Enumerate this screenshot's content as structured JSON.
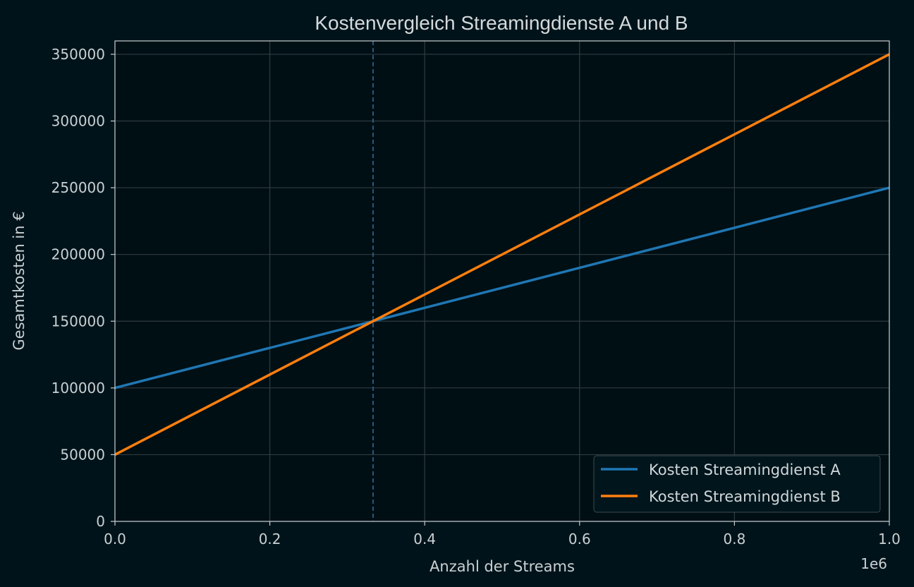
{
  "chart_data": {
    "type": "line",
    "title": "Kostenvergleich Streamingdienste A und B",
    "xlabel": "Anzahl der Streams",
    "ylabel": "Gesamtkosten in €",
    "x_offset_label": "1e6",
    "xlim": [
      0,
      1000000
    ],
    "ylim": [
      0,
      360000
    ],
    "x_ticks": [
      0,
      200000,
      400000,
      600000,
      800000,
      1000000
    ],
    "x_tick_labels": [
      "0.0",
      "0.2",
      "0.4",
      "0.6",
      "0.8",
      "1.0"
    ],
    "y_ticks": [
      0,
      50000,
      100000,
      150000,
      200000,
      250000,
      300000,
      350000
    ],
    "y_tick_labels": [
      "0",
      "50000",
      "100000",
      "150000",
      "200000",
      "250000",
      "300000",
      "350000"
    ],
    "grid": true,
    "legend_position": "bottom-right",
    "vline_x": 333333,
    "series": [
      {
        "name": "Kosten Streamingdienst A",
        "color": "#1f77b4",
        "x": [
          0,
          1000000
        ],
        "y": [
          100000,
          250000
        ]
      },
      {
        "name": "Kosten Streamingdienst B",
        "color": "#ff7f0e",
        "x": [
          0,
          1000000
        ],
        "y": [
          50000,
          350000
        ]
      }
    ]
  }
}
